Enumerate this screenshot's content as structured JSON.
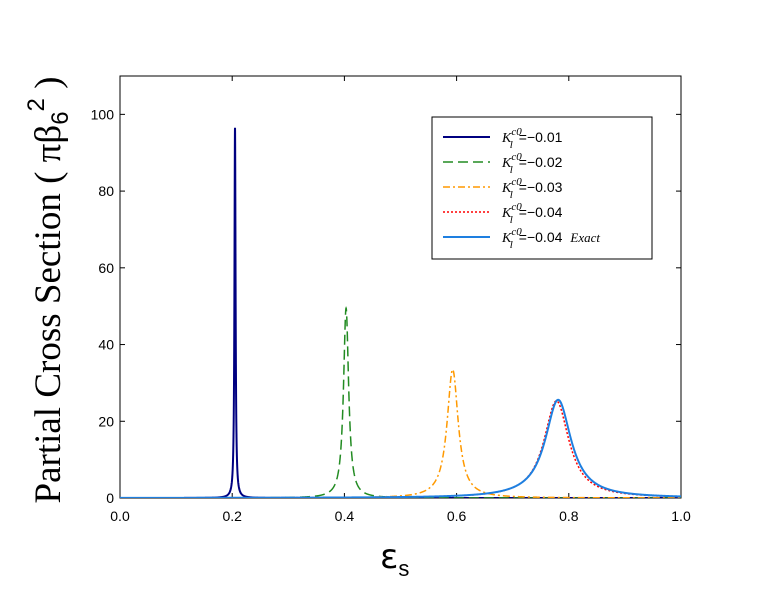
{
  "chart_data": {
    "type": "line",
    "xlabel_main": "ε",
    "xlabel_sub": "s",
    "ylabel_main": "Partial Cross Section ( πβ",
    "ylabel_sub": "6",
    "ylabel_sup": "2",
    "ylabel_close": " )",
    "xlim": [
      0,
      1
    ],
    "ylim": [
      0,
      110
    ],
    "xticks": [
      "0.0",
      "0.2",
      "0.4",
      "0.6",
      "0.8",
      "1.0"
    ],
    "xtick_values": [
      0,
      0.2,
      0.4,
      0.6,
      0.8,
      1.0
    ],
    "yticks": [
      "0",
      "20",
      "40",
      "60",
      "80",
      "100"
    ],
    "ytick_values": [
      0,
      20,
      40,
      60,
      80,
      100
    ],
    "legend_position": "top-right",
    "series": [
      {
        "name": "K",
        "sup": "c0",
        "sub": "l",
        "value": "=−0.01",
        "extra": "",
        "color": "#000080",
        "dash": "",
        "width": 2,
        "peak_x": 0.205,
        "peak_y": 96.5,
        "half_width": 0.0012,
        "baseline": 0.15
      },
      {
        "name": "K",
        "sup": "c0",
        "sub": "l",
        "value": "=−0.02",
        "extra": "",
        "color": "#228B22",
        "dash": "10,5",
        "width": 1.5,
        "peak_x": 0.403,
        "peak_y": 49.5,
        "half_width": 0.0055,
        "baseline": 0.2
      },
      {
        "name": "K",
        "sup": "c0",
        "sub": "l",
        "value": "=−0.03",
        "extra": "",
        "color": "#FF9900",
        "dash": "7,3,2,3",
        "width": 1.5,
        "peak_x": 0.593,
        "peak_y": 33.5,
        "half_width": 0.012,
        "baseline": 0.25
      },
      {
        "name": "K",
        "sup": "c0",
        "sub": "l",
        "value": "=−0.04",
        "extra": "",
        "color": "#FF0000",
        "dash": "2,2",
        "width": 1.5,
        "peak_x": 0.778,
        "peak_y": 25.3,
        "half_width": 0.027,
        "baseline": 0.3
      },
      {
        "name": "K",
        "sup": "c0",
        "sub": "l",
        "value": "=−0.04",
        "extra": "Exact",
        "color": "#1E7FE0",
        "dash": "",
        "width": 2,
        "peak_x": 0.781,
        "peak_y": 25.6,
        "half_width": 0.028,
        "baseline": 0.35
      }
    ]
  }
}
